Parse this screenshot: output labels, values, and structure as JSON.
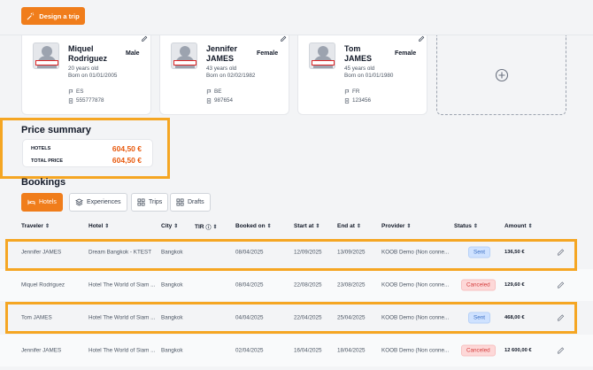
{
  "header": {
    "design_trip_label": "Design a trip"
  },
  "travelers": [
    {
      "first": "Miquel",
      "last": "Rodriguez",
      "gender": "Male",
      "age": "20 years old",
      "born": "Born on 01/01/2005",
      "country": "ES",
      "passport": "555777878"
    },
    {
      "first": "Jennifer",
      "last": "JAMES",
      "gender": "Female",
      "age": "43 years old",
      "born": "Born on 02/02/1982",
      "country": "BE",
      "passport": "987654"
    },
    {
      "first": "Tom",
      "last": "JAMES",
      "gender": "Female",
      "age": "45 years old",
      "born": "Born on 01/01/1980",
      "country": "FR",
      "passport": "123456"
    }
  ],
  "price_summary": {
    "title": "Price summary",
    "hotels_label": "HOTELS",
    "hotels_value": "604,50 €",
    "total_label": "TOTAL PRICE",
    "total_value": "604,50 €"
  },
  "bookings": {
    "title": "Bookings",
    "tabs": [
      "Hotels",
      "Experiences",
      "Trips",
      "Drafts"
    ],
    "columns": [
      "Traveler",
      "Hotel",
      "City",
      "TIR",
      "Booked on",
      "Start at",
      "End at",
      "Provider",
      "Status",
      "Amount"
    ],
    "rows": [
      {
        "traveler": "Jennifer JAMES",
        "hotel": "Dream Bangkok - KTEST",
        "city": "Bangkok",
        "booked": "08/04/2025",
        "start": "12/09/2025",
        "end": "13/09/2025",
        "provider": "KOOB Demo (Non conne...",
        "status": "Sent",
        "amount": "136,50 €"
      },
      {
        "traveler": "Miquel Rodriguez",
        "hotel": "Hotel The World of Siam ...",
        "city": "Bangkok",
        "booked": "08/04/2025",
        "start": "22/08/2025",
        "end": "23/08/2025",
        "provider": "KOOB Demo (Non conne...",
        "status": "Canceled",
        "amount": "129,60 €"
      },
      {
        "traveler": "Tom JAMES",
        "hotel": "Hotel The World of Siam ...",
        "city": "Bangkok",
        "booked": "04/04/2025",
        "start": "22/04/2025",
        "end": "25/04/2025",
        "provider": "KOOB Demo (Non conne...",
        "status": "Sent",
        "amount": "468,00 €"
      },
      {
        "traveler": "Jennifer JAMES",
        "hotel": "Hotel The World of Siam ...",
        "city": "Bangkok",
        "booked": "02/04/2025",
        "start": "16/04/2025",
        "end": "18/04/2025",
        "provider": "KOOB Demo (Non conne...",
        "status": "Canceled",
        "amount": "12 600,00 €"
      }
    ]
  },
  "colors": {
    "accent": "#f07d1b",
    "highlight": "#f5a623",
    "price": "#e8590c"
  }
}
